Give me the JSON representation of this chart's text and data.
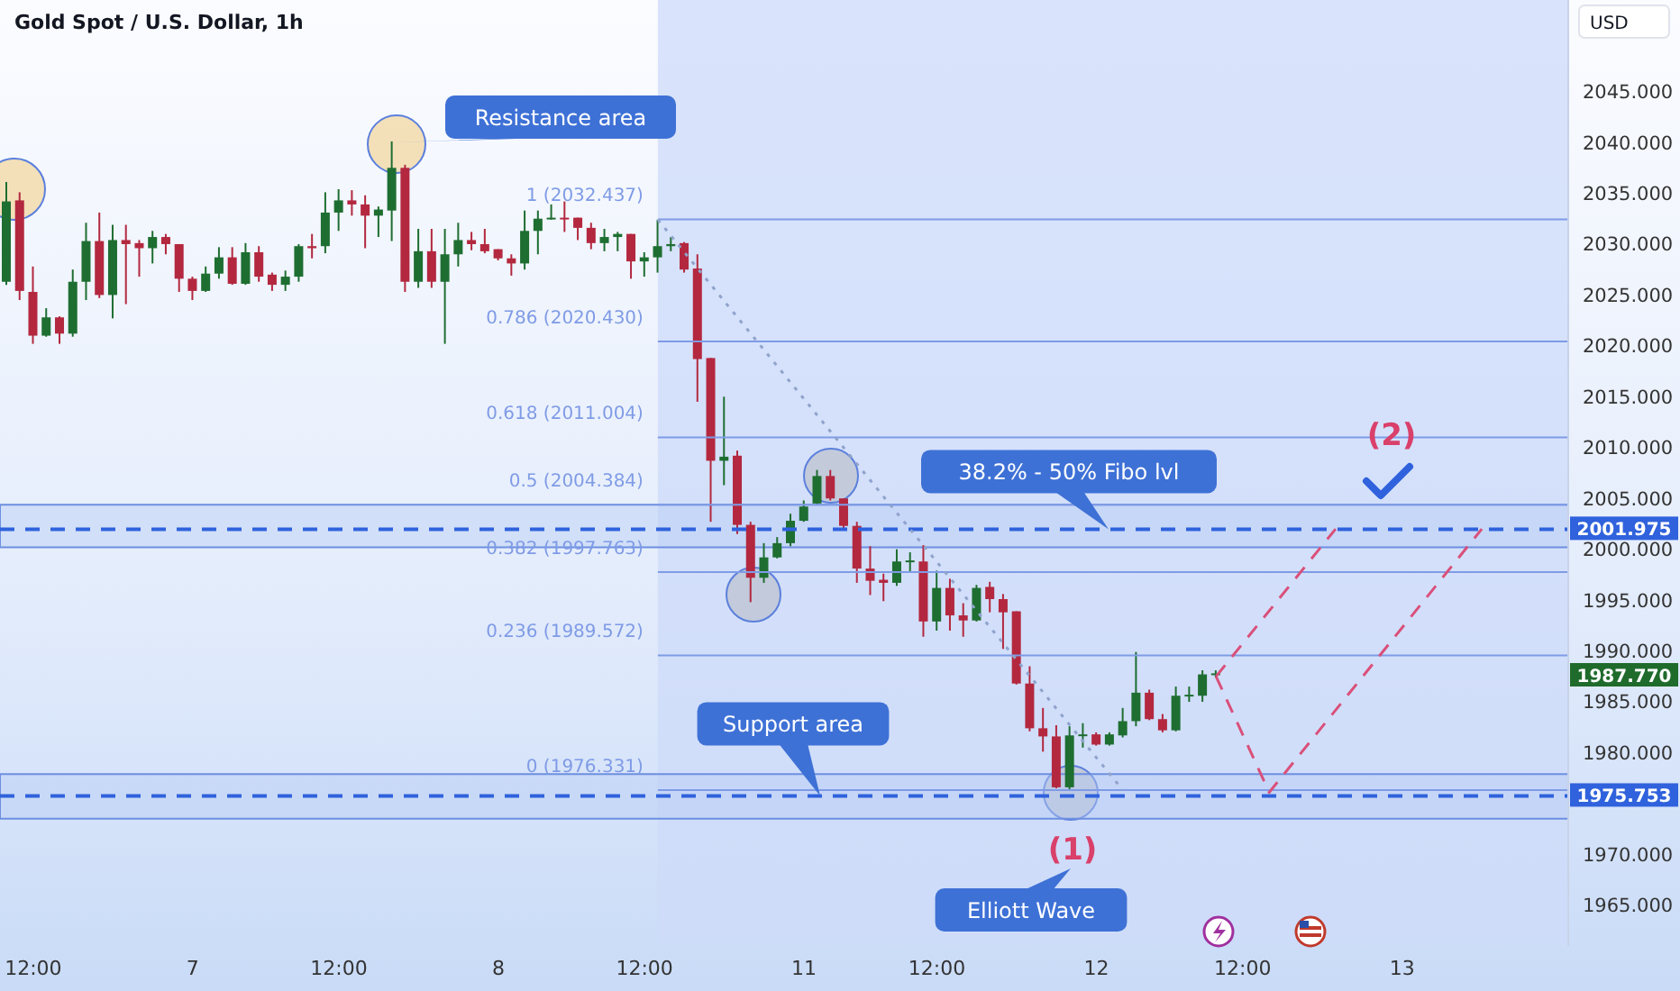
{
  "chart_data": {
    "type": "candlestick",
    "title": "Gold Spot / U.S. Dollar, 1h",
    "ylabel": "USD",
    "categories": [
      null,
      null,
      "12:00",
      null,
      null,
      null,
      null,
      null,
      null,
      null,
      null,
      null,
      null,
      null,
      "7",
      null,
      null,
      null,
      null,
      null,
      null,
      null,
      null,
      null,
      null,
      "12:00",
      null,
      null,
      null,
      null,
      null,
      null,
      null,
      null,
      null,
      null,
      null,
      "8",
      null,
      null,
      null,
      null,
      null,
      null,
      null,
      null,
      null,
      null,
      "12:00",
      null,
      null,
      null,
      null,
      null,
      null,
      null,
      null,
      null,
      null,
      null,
      "11",
      null,
      null,
      null,
      null,
      null,
      null,
      null,
      null,
      null,
      "12:00",
      null,
      null,
      null,
      null,
      null,
      null,
      null,
      null,
      null,
      null,
      null,
      "12",
      null,
      null,
      null,
      null,
      null,
      null,
      null,
      null,
      null,
      null,
      "12:00",
      null,
      null,
      null,
      null,
      null,
      null,
      null,
      null,
      null,
      null,
      null,
      "13",
      null,
      null,
      null,
      null,
      null,
      null,
      null,
      null,
      null,
      null,
      null,
      null
    ],
    "ohlc": [
      [
        2026.3,
        2036.1,
        2026.0,
        2034.2
      ],
      [
        2034.3,
        2035.1,
        2024.5,
        2025.4
      ],
      [
        2025.3,
        2027.8,
        2020.2,
        2021.0
      ],
      [
        2021.0,
        2023.7,
        2020.9,
        2022.8
      ],
      [
        2022.8,
        2022.9,
        2020.2,
        2021.2
      ],
      [
        2021.2,
        2027.5,
        2020.9,
        2026.3
      ],
      [
        2026.3,
        2032.1,
        2024.5,
        2030.3
      ],
      [
        2030.3,
        2033.1,
        2024.7,
        2025.0
      ],
      [
        2025.0,
        2031.9,
        2022.7,
        2030.4
      ],
      [
        2030.4,
        2031.9,
        2024.1,
        2030.0
      ],
      [
        2030.1,
        2030.4,
        2026.8,
        2029.6
      ],
      [
        2029.6,
        2031.3,
        2028.1,
        2030.7
      ],
      [
        2030.7,
        2031.0,
        2029.0,
        2030.0
      ],
      [
        2030.0,
        2030.0,
        2025.3,
        2026.6
      ],
      [
        2026.6,
        2026.8,
        2024.5,
        2025.4
      ],
      [
        2025.4,
        2027.8,
        2025.3,
        2027.1
      ],
      [
        2027.1,
        2029.7,
        2026.6,
        2028.7
      ],
      [
        2028.7,
        2029.7,
        2026.0,
        2026.1
      ],
      [
        2026.1,
        2030.1,
        2026.0,
        2029.2
      ],
      [
        2029.2,
        2029.8,
        2026.3,
        2026.8
      ],
      [
        2027.0,
        2027.2,
        2025.4,
        2026.0
      ],
      [
        2026.0,
        2027.4,
        2025.4,
        2026.8
      ],
      [
        2026.8,
        2030.0,
        2026.3,
        2029.8
      ],
      [
        2029.8,
        2031.0,
        2028.6,
        2029.6
      ],
      [
        2029.8,
        2035.1,
        2029.1,
        2033.1
      ],
      [
        2033.1,
        2035.4,
        2031.3,
        2034.3
      ],
      [
        2034.3,
        2035.3,
        2032.8,
        2033.9
      ],
      [
        2033.9,
        2034.8,
        2029.6,
        2032.8
      ],
      [
        2032.8,
        2033.7,
        2030.7,
        2033.4
      ],
      [
        2033.3,
        2040.1,
        2030.3,
        2037.5
      ],
      [
        2037.5,
        2037.8,
        2025.3,
        2026.3
      ],
      [
        2026.3,
        2031.5,
        2025.7,
        2029.3
      ],
      [
        2029.3,
        2031.5,
        2025.7,
        2026.3
      ],
      [
        2026.3,
        2031.5,
        2020.2,
        2029.0
      ],
      [
        2029.0,
        2032.1,
        2027.8,
        2030.4
      ],
      [
        2030.4,
        2031.2,
        2029.4,
        2030.0
      ],
      [
        2030.0,
        2031.5,
        2029.1,
        2029.3
      ],
      [
        2029.5,
        2029.5,
        2028.4,
        2028.6
      ],
      [
        2028.6,
        2029.0,
        2026.9,
        2028.1
      ],
      [
        2028.1,
        2033.3,
        2027.5,
        2031.3
      ],
      [
        2031.3,
        2033.3,
        2029.0,
        2032.5
      ],
      [
        2032.5,
        2033.9,
        2032.4,
        2032.6
      ],
      [
        2032.6,
        2034.2,
        2031.2,
        2032.5
      ],
      [
        2032.6,
        2032.6,
        2030.4,
        2031.6
      ],
      [
        2031.6,
        2032.1,
        2029.5,
        2030.1
      ],
      [
        2030.1,
        2031.5,
        2029.3,
        2030.7
      ],
      [
        2030.7,
        2031.2,
        2029.3,
        2031.0
      ],
      [
        2031.0,
        2031.0,
        2026.6,
        2028.3
      ],
      [
        2028.3,
        2029.2,
        2026.8,
        2028.7
      ],
      [
        2028.7,
        2032.4,
        2027.2,
        2029.8
      ],
      [
        2029.8,
        2030.7,
        2029.3,
        2030.0
      ],
      [
        2030.1,
        2030.2,
        2027.2,
        2027.5
      ],
      [
        2027.6,
        2029.0,
        2014.5,
        2018.7
      ],
      [
        2018.8,
        2018.8,
        2002.7,
        2008.7
      ],
      [
        2008.7,
        2015.0,
        2006.3,
        2009.1
      ],
      [
        2009.2,
        2009.7,
        2001.5,
        2002.4
      ],
      [
        2002.4,
        2002.7,
        1994.8,
        1997.2
      ],
      [
        1997.2,
        2000.6,
        1996.7,
        1999.2
      ],
      [
        1999.2,
        2001.2,
        1999.1,
        2000.6
      ],
      [
        2000.6,
        2003.5,
        2000.3,
        2002.8
      ],
      [
        2002.8,
        2004.8,
        2002.7,
        2004.2
      ],
      [
        2004.5,
        2007.8,
        2004.4,
        2007.2
      ],
      [
        2007.2,
        2007.8,
        2004.8,
        2005.0
      ],
      [
        2005.0,
        2005.0,
        2002.1,
        2002.3
      ],
      [
        2002.3,
        2002.7,
        1996.7,
        1998.1
      ],
      [
        1998.1,
        2000.3,
        1995.5,
        1996.9
      ],
      [
        1997.0,
        1997.6,
        1994.9,
        1996.7
      ],
      [
        1996.7,
        2000.0,
        1996.4,
        1998.8
      ],
      [
        1998.8,
        1999.7,
        1997.8,
        1998.9
      ],
      [
        1998.8,
        2000.4,
        1991.4,
        1992.9
      ],
      [
        1992.9,
        1997.9,
        1992.0,
        1996.2
      ],
      [
        1996.2,
        1997.1,
        1992.0,
        1993.5
      ],
      [
        1993.5,
        1994.7,
        1991.4,
        1993.0
      ],
      [
        1993.0,
        1996.5,
        1992.9,
        1996.2
      ],
      [
        1996.3,
        1996.8,
        1993.8,
        1995.1
      ],
      [
        1995.1,
        1995.6,
        1990.2,
        1993.8
      ],
      [
        1993.9,
        1993.9,
        1986.7,
        1986.8
      ],
      [
        1986.8,
        1988.5,
        1982.1,
        1982.4
      ],
      [
        1982.4,
        1984.4,
        1980.1,
        1981.6
      ],
      [
        1981.6,
        1982.7,
        1976.5,
        1976.6
      ],
      [
        1976.6,
        1982.6,
        1976.3,
        1981.7
      ],
      [
        1981.7,
        1982.9,
        1980.5,
        1981.8
      ],
      [
        1981.8,
        1982.0,
        1980.7,
        1980.8
      ],
      [
        1980.8,
        1982.0,
        1980.7,
        1981.8
      ],
      [
        1981.7,
        1984.4,
        1981.5,
        1983.1
      ],
      [
        1983.1,
        1989.9,
        1982.6,
        1985.9
      ],
      [
        1985.9,
        1986.2,
        1983.2,
        1983.3
      ],
      [
        1983.3,
        1983.8,
        1982.0,
        1982.2
      ],
      [
        1982.2,
        1986.5,
        1982.1,
        1985.6
      ],
      [
        1985.6,
        1986.5,
        1985.0,
        1985.7
      ],
      [
        1985.6,
        1988.1,
        1985.0,
        1987.7
      ],
      [
        1987.7,
        1988.1,
        1987.4,
        1987.8
      ],
      null,
      null,
      null,
      null,
      null,
      null,
      null,
      null,
      null,
      null,
      null,
      null,
      null,
      null,
      null,
      null,
      null,
      null,
      null,
      null,
      null,
      null,
      null,
      null,
      null,
      null
    ],
    "colors": [
      "#1e6e31",
      "#b3283f",
      "#b3283f",
      "#1e6e31",
      "#b3283f",
      "#1e6e31",
      "#1e6e31",
      "#b3283f",
      "#1e6e31",
      "#b3283f",
      "#b3283f",
      "#1e6e31",
      "#b3283f",
      "#b3283f",
      "#b3283f",
      "#1e6e31",
      "#1e6e31",
      "#b3283f",
      "#1e6e31",
      "#b3283f",
      "#b3283f",
      "#1e6e31",
      "#1e6e31",
      "#b3283f",
      "#1e6e31",
      "#1e6e31",
      "#b3283f",
      "#b3283f",
      "#1e6e31",
      "#1e6e31",
      "#b3283f",
      "#1e6e31",
      "#b3283f",
      "#1e6e31",
      "#1e6e31",
      "#b3283f",
      "#b3283f",
      "#b3283f",
      "#b3283f",
      "#1e6e31",
      "#1e6e31",
      "#1e6e31",
      "#b3283f",
      "#b3283f",
      "#b3283f",
      "#1e6e31",
      "#1e6e31",
      "#b3283f",
      "#1e6e31",
      "#1e6e31",
      "#1e6e31",
      "#b3283f",
      "#b3283f",
      "#b3283f",
      "#1e6e31",
      "#b3283f",
      "#b3283f",
      "#1e6e31",
      "#1e6e31",
      "#1e6e31",
      "#1e6e31",
      "#1e6e31",
      "#b3283f",
      "#b3283f",
      "#b3283f",
      "#b3283f",
      "#b3283f",
      "#1e6e31",
      "#1e6e31",
      "#b3283f",
      "#1e6e31",
      "#b3283f",
      "#b3283f",
      "#1e6e31",
      "#b3283f",
      "#b3283f",
      "#b3283f",
      "#b3283f",
      "#b3283f",
      "#b3283f",
      "#1e6e31",
      "#1e6e31",
      "#b3283f",
      "#1e6e31",
      "#1e6e31",
      "#1e6e31",
      "#b3283f",
      "#b3283f",
      "#1e6e31",
      "#1e6e31",
      "#1e6e31",
      "#1e6e31",
      null,
      null,
      null,
      null,
      null,
      null,
      null,
      null,
      null,
      null,
      null,
      null,
      null,
      null,
      null,
      null,
      null,
      null,
      null,
      null,
      null,
      null,
      null,
      null,
      null,
      null
    ],
    "series": [
      {
        "type": "line",
        "color": "#8fa3cc",
        "line_style": "dotted",
        "values": [
          null,
          null,
          null,
          null,
          null,
          null,
          null,
          null,
          null,
          null,
          null,
          null,
          null,
          null,
          null,
          null,
          null,
          null,
          null,
          null,
          null,
          null,
          null,
          null,
          null,
          null,
          null,
          null,
          null,
          null,
          null,
          null,
          null,
          null,
          null,
          null,
          null,
          null,
          null,
          null,
          null,
          null,
          null,
          null,
          null,
          null,
          null,
          null,
          null,
          2032.4,
          null,
          null,
          null,
          null,
          null,
          null,
          null,
          null,
          null,
          null,
          null,
          null,
          null,
          null,
          null,
          null,
          null,
          null,
          null,
          null,
          null,
          null,
          null,
          null,
          null,
          null,
          null,
          null,
          null,
          null,
          null,
          null,
          null,
          null,
          1976.3,
          null,
          null,
          null,
          null,
          null,
          null,
          null,
          null,
          null,
          null,
          null,
          null,
          null,
          null,
          null,
          null,
          null,
          null,
          null,
          null,
          null,
          null,
          null,
          null,
          null,
          null,
          null,
          null,
          null,
          null,
          null,
          null,
          null
        ]
      },
      {
        "type": "line",
        "color": "#d9507a",
        "line_style": "dashed",
        "values": [
          null,
          null,
          null,
          null,
          null,
          null,
          null,
          null,
          null,
          null,
          null,
          null,
          null,
          null,
          null,
          null,
          null,
          null,
          null,
          null,
          null,
          null,
          null,
          null,
          null,
          null,
          null,
          null,
          null,
          null,
          null,
          null,
          null,
          null,
          null,
          null,
          null,
          null,
          null,
          null,
          null,
          null,
          null,
          null,
          null,
          null,
          null,
          null,
          null,
          null,
          null,
          null,
          null,
          null,
          null,
          null,
          null,
          null,
          null,
          null,
          null,
          null,
          null,
          null,
          null,
          null,
          null,
          null,
          null,
          null,
          null,
          null,
          null,
          null,
          null,
          null,
          null,
          null,
          null,
          null,
          null,
          null,
          null,
          null,
          null,
          null,
          null,
          null,
          null,
          null,
          null,
          1987.5,
          null,
          null,
          null,
          null,
          null,
          null,
          null,
          null,
          2002.0,
          null,
          null,
          null,
          null,
          null,
          null,
          null,
          null,
          null,
          null,
          null,
          null,
          null,
          null,
          null,
          null,
          null
        ]
      },
      {
        "type": "line",
        "color": "#d9507a",
        "line_style": "dashed",
        "values": [
          null,
          null,
          null,
          null,
          null,
          null,
          null,
          null,
          null,
          null,
          null,
          null,
          null,
          null,
          null,
          null,
          null,
          null,
          null,
          null,
          null,
          null,
          null,
          null,
          null,
          null,
          null,
          null,
          null,
          null,
          null,
          null,
          null,
          null,
          null,
          null,
          null,
          null,
          null,
          null,
          null,
          null,
          null,
          null,
          null,
          null,
          null,
          null,
          null,
          null,
          null,
          null,
          null,
          null,
          null,
          null,
          null,
          null,
          null,
          null,
          null,
          null,
          null,
          null,
          null,
          null,
          null,
          null,
          null,
          null,
          null,
          null,
          null,
          null,
          null,
          null,
          null,
          null,
          null,
          null,
          null,
          null,
          null,
          null,
          null,
          null,
          null,
          null,
          null,
          null,
          null,
          1987.5,
          null,
          null,
          null,
          1976.1,
          null,
          null,
          null,
          null,
          null,
          null,
          null,
          null,
          null,
          null,
          null,
          null,
          null,
          null,
          null,
          2002.0,
          null,
          null,
          null,
          null,
          null,
          null
        ]
      }
    ],
    "ylim": [
      1961,
      2054
    ],
    "yticks": [
      {
        "value": 1965,
        "label": "1965.000"
      },
      {
        "value": 1970,
        "label": "1970.000"
      },
      {
        "value": 1980,
        "label": "1980.000"
      },
      {
        "value": 1985,
        "label": "1985.000"
      },
      {
        "value": 1990,
        "label": "1990.000"
      },
      {
        "value": 1995,
        "label": "1995.000"
      },
      {
        "value": 2000,
        "label": "2000.000"
      },
      {
        "value": 2005,
        "label": "2005.000"
      },
      {
        "value": 2010,
        "label": "2010.000"
      },
      {
        "value": 2015,
        "label": "2015.000"
      },
      {
        "value": 2020,
        "label": "2020.000"
      },
      {
        "value": 2025,
        "label": "2025.000"
      },
      {
        "value": 2030,
        "label": "2030.000"
      },
      {
        "value": 2035,
        "label": "2035.000"
      },
      {
        "value": 2040,
        "label": "2040.000"
      },
      {
        "value": 2045,
        "label": "2045.000"
      }
    ],
    "bands": [
      {
        "axis": "y",
        "from": 2000.2,
        "to": 2004.384,
        "color": "#b7cbf4"
      },
      {
        "axis": "y",
        "from": 1973.5,
        "to": 1977.9,
        "color": "#b7cbf4"
      }
    ],
    "ref_lines": [
      {
        "axis": "y",
        "value": 2032.437,
        "label": "1 (2032.437)",
        "color": "#7f9be6"
      },
      {
        "axis": "y",
        "value": 2020.43,
        "label": "0.786 (2020.430)",
        "color": "#7f9be6"
      },
      {
        "axis": "y",
        "value": 2011.004,
        "label": "0.618 (2011.004)",
        "color": "#7f9be6"
      },
      {
        "axis": "y",
        "value": 2004.384,
        "label": "0.5 (2004.384)",
        "color": "#7f9be6"
      },
      {
        "axis": "y",
        "value": 1997.763,
        "label": "0.382 (1997.763)",
        "color": "#7f9be6"
      },
      {
        "axis": "y",
        "value": 1989.572,
        "label": "0.236 (1989.572)",
        "color": "#7f9be6"
      },
      {
        "axis": "y",
        "value": 1976.331,
        "label": "0 (1976.331)",
        "color": "#7f9be6"
      },
      {
        "axis": "y",
        "value": 2001.975,
        "label": "2001.975",
        "color": "#2f62dc",
        "line_style": "dashed"
      },
      {
        "axis": "y",
        "value": 1975.753,
        "label": "1975.753",
        "color": "#2f62dc",
        "line_style": "dashed"
      }
    ],
    "annotations": [
      "Resistance area",
      {
        "text": "Support area",
        "y": 1975.753
      },
      {
        "text": "38.2% - 50% Fibo lvl",
        "y": 2001.975
      },
      "(1)",
      "(2)",
      "Elliott Wave",
      "1987.770"
    ]
  }
}
